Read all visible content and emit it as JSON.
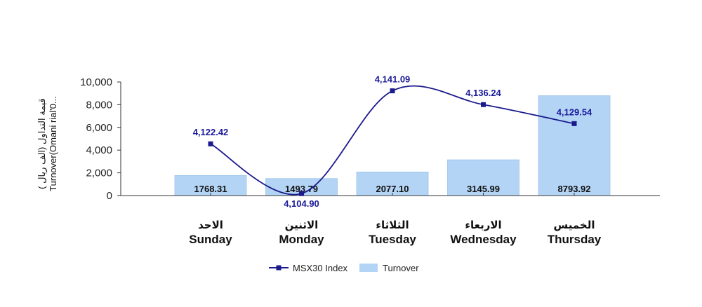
{
  "chart_data": {
    "type": "bar",
    "categories_ar": [
      "الاحد",
      "الاثنين",
      "الثلاثاء",
      "الاربعاء",
      "الخميس"
    ],
    "categories": [
      "Sunday",
      "Monday",
      "Tuesday",
      "Wednesday",
      "Thursday"
    ],
    "series": [
      {
        "name": "Turnover",
        "type": "bar",
        "axis": "left",
        "values": [
          1768.31,
          1493.79,
          2077.1,
          3145.99,
          8793.92
        ],
        "labels": [
          "1768.31",
          "1493.79",
          "2077.10",
          "3145.99",
          "8793.92"
        ],
        "color": "#b3d4f5"
      },
      {
        "name": "MSX30 Index",
        "type": "line",
        "axis": "right",
        "values": [
          4122.42,
          4104.9,
          4141.09,
          4136.24,
          4129.54
        ],
        "labels": [
          "4,122.42",
          "4,104.90",
          "4,141.09",
          "4,136.24",
          "4,129.54"
        ],
        "color": "#1a1a8c"
      }
    ],
    "ylabel_ar": "( قيمة التداول (الف ريال",
    "ylabel_en": "Turnover(Omani rial'0...",
    "ylim": [
      0,
      10000
    ],
    "yticks": [
      "0",
      "2,000",
      "4,000",
      "6,000",
      "8,000",
      "10,000"
    ],
    "legend_position": "bottom-center"
  }
}
